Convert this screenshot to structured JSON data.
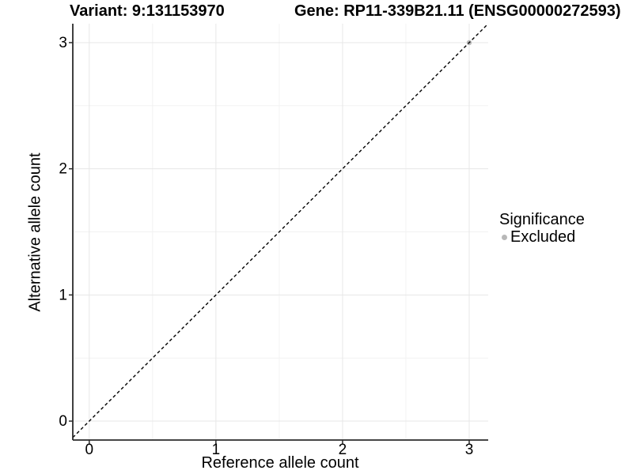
{
  "chart_data": {
    "type": "scatter",
    "title_left": "Variant: 9:131153970",
    "title_right": "Gene: RP11-339B21.11 (ENSG00000272593)",
    "xlabel": "Reference allele count",
    "ylabel": "Alternative allele count",
    "axes": {
      "x": {
        "range": [
          -0.13,
          3.15
        ],
        "ticks": [
          0,
          1,
          2,
          3
        ],
        "tick_labels": [
          "0",
          "1",
          "2",
          "3"
        ],
        "minor_ticks": [
          0.5,
          1.5,
          2.5
        ]
      },
      "y": {
        "range": [
          -0.15,
          3.15
        ],
        "ticks": [
          0,
          1,
          2,
          3
        ],
        "tick_labels": [
          "0",
          "1",
          "2",
          "3"
        ],
        "minor_ticks": [
          0.5,
          1.5,
          2.5
        ]
      }
    },
    "grid": {
      "major": true,
      "minor": true
    },
    "series": [
      {
        "name": "Excluded",
        "color": "#b8b8b8",
        "marker": "circle",
        "points": [
          [
            3,
            3
          ]
        ]
      }
    ],
    "reference_line": {
      "type": "identity",
      "slope": 1,
      "intercept": 0,
      "style": "dashed",
      "color": "#000000"
    },
    "legend": {
      "title": "Significance",
      "position": "right",
      "entries": [
        {
          "label": "Excluded",
          "color": "#b8b8b8",
          "marker": "circle"
        }
      ]
    }
  },
  "colors": {
    "background": "#ffffff",
    "grid_major": "#e7e7e7",
    "grid_minor": "#f2f2f2",
    "axis": "#2b2b2b",
    "text": "#000000"
  }
}
